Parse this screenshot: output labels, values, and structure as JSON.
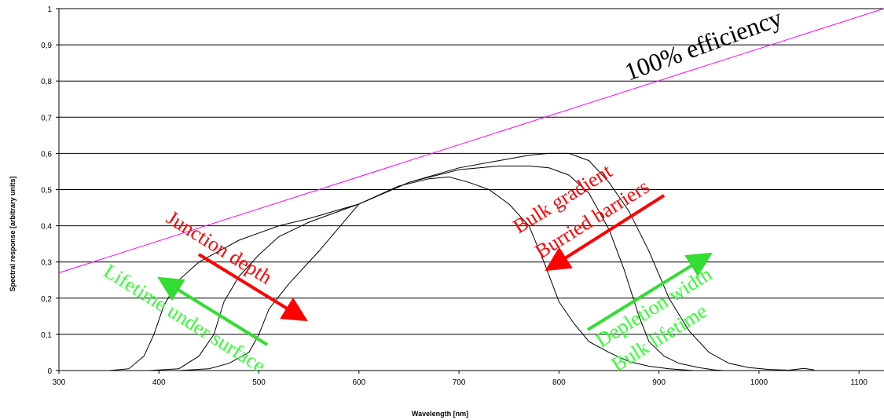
{
  "chart_data": {
    "type": "line",
    "title": "",
    "xlabel": "Wavelength [nm]",
    "ylabel": "Spectral response [arbitrary units]",
    "xlim": [
      300,
      1125
    ],
    "ylim": [
      0,
      1
    ],
    "x_ticks": [
      300,
      400,
      500,
      600,
      700,
      800,
      900,
      1000,
      1100
    ],
    "y_ticks": [
      0,
      0.1,
      0.2,
      0.3,
      0.4,
      0.5,
      0.6,
      0.7,
      0.8,
      0.9,
      1
    ],
    "y_tick_labels": [
      "0",
      "0,1",
      "0,2",
      "0,3",
      "0,4",
      "0,5",
      "0,6",
      "0,7",
      "0,8",
      "0,9",
      "1"
    ],
    "grid": "horizontal",
    "series": [
      {
        "color": "#000000",
        "x": [
          350,
          370,
          385,
          395,
          405,
          420,
          440,
          460,
          480,
          500,
          520,
          550,
          600,
          650,
          700,
          740,
          770,
          790,
          810,
          830,
          850,
          870,
          890,
          910,
          930,
          950,
          970,
          990,
          1010,
          1030,
          1045,
          1055
        ],
        "y": [
          0,
          0.005,
          0.04,
          0.1,
          0.18,
          0.25,
          0.3,
          0.33,
          0.36,
          0.38,
          0.4,
          0.42,
          0.46,
          0.52,
          0.56,
          0.58,
          0.595,
          0.6,
          0.6,
          0.58,
          0.52,
          0.44,
          0.33,
          0.2,
          0.11,
          0.05,
          0.02,
          0.008,
          0.003,
          0.001,
          0.006,
          0.002
        ]
      },
      {
        "color": "#000000",
        "x": [
          390,
          420,
          440,
          455,
          465,
          480,
          500,
          520,
          550,
          600,
          650,
          700,
          740,
          770,
          790,
          810,
          830,
          850,
          865,
          880,
          890,
          905,
          920,
          940,
          955,
          965
        ],
        "y": [
          0,
          0.005,
          0.04,
          0.1,
          0.19,
          0.26,
          0.32,
          0.37,
          0.41,
          0.46,
          0.52,
          0.555,
          0.565,
          0.565,
          0.56,
          0.54,
          0.49,
          0.39,
          0.28,
          0.15,
          0.08,
          0.04,
          0.02,
          0.008,
          0.002,
          0
        ]
      },
      {
        "color": "#000000",
        "x": [
          420,
          450,
          470,
          490,
          500,
          510,
          530,
          560,
          600,
          640,
          670,
          690,
          710,
          730,
          750,
          770,
          785,
          800,
          815,
          830,
          850,
          870,
          890,
          910,
          925,
          935
        ],
        "y": [
          0,
          0.005,
          0.02,
          0.05,
          0.1,
          0.17,
          0.24,
          0.33,
          0.46,
          0.51,
          0.53,
          0.535,
          0.52,
          0.5,
          0.46,
          0.4,
          0.3,
          0.19,
          0.13,
          0.08,
          0.05,
          0.025,
          0.012,
          0.005,
          0.002,
          0
        ]
      }
    ],
    "reference_line": {
      "color": "#ff00ff",
      "x": [
        300,
        1125
      ],
      "y": [
        0.27,
        1.0
      ],
      "label": "100% efficiency"
    },
    "annotations": [
      {
        "text": "Junction depth",
        "color": "#ff0000"
      },
      {
        "text": "Lifetime under surface",
        "color": "#33ff33"
      },
      {
        "text": "Bulk gradient",
        "color": "#ff0000"
      },
      {
        "text": "Burried barriers",
        "color": "#ff0000"
      },
      {
        "text": "Depletion width",
        "color": "#33ff33"
      },
      {
        "text": "Bulk lifetime",
        "color": "#33ff33"
      }
    ],
    "arrow_colors": {
      "red": "#ff0000",
      "green": "#33dd33"
    }
  }
}
